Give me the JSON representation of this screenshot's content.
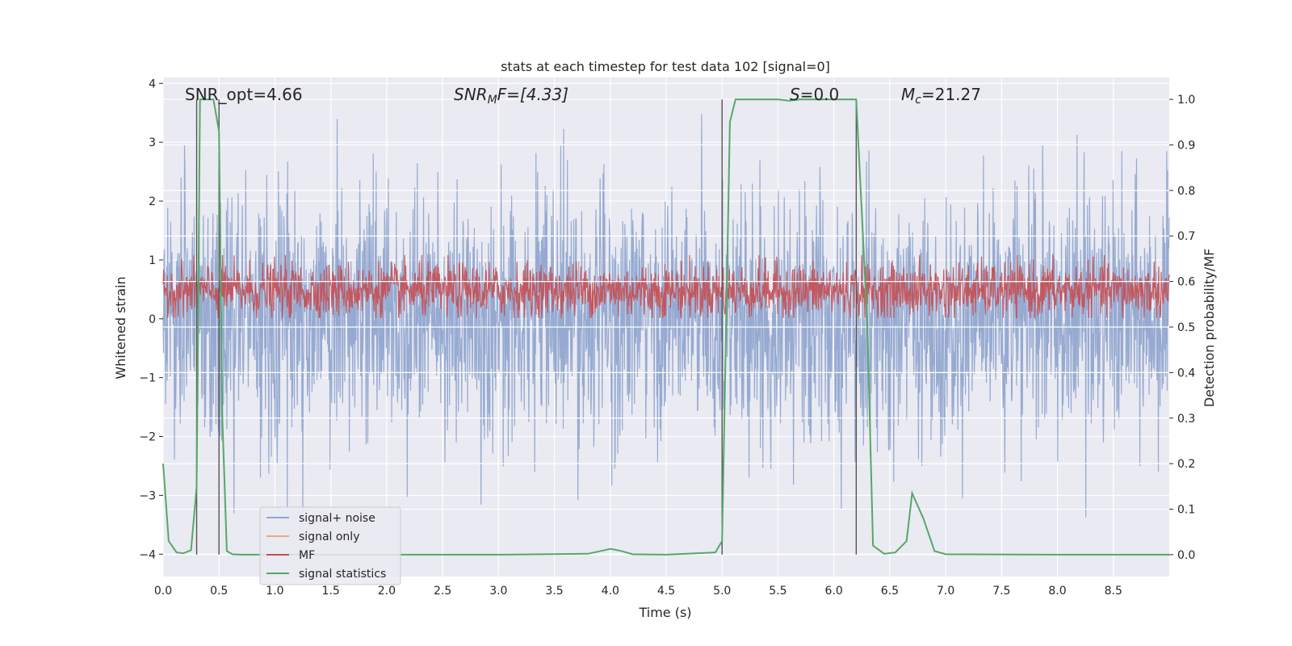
{
  "chart_data": {
    "type": "line",
    "title": "stats at each timestep for test data 102 [signal=0]",
    "xlabel": "Time (s)",
    "ylabel_left": "Whitened strain",
    "ylabel_right": "Detection probability/MF",
    "xlim": [
      0.0,
      9.0
    ],
    "ylim_left": [
      -4.38,
      4.1
    ],
    "ylim_right": [
      -0.048,
      1.048
    ],
    "x_ticks": [
      "0.0",
      "0.5",
      "1.0",
      "1.5",
      "2.0",
      "2.5",
      "3.0",
      "3.5",
      "4.0",
      "4.5",
      "5.0",
      "5.5",
      "6.0",
      "6.5",
      "7.0",
      "7.5",
      "8.0",
      "8.5"
    ],
    "y_ticks_left": [
      "4",
      "3",
      "2",
      "1",
      "0",
      "−1",
      "−2",
      "−3",
      "−4"
    ],
    "y_ticks_right": [
      "1.0",
      "0.9",
      "0.8",
      "0.7",
      "0.6",
      "0.5",
      "0.4",
      "0.3",
      "0.2",
      "0.1",
      "0.0"
    ],
    "grid": true,
    "legend_position": "lower-left",
    "annotations": {
      "snr_opt": "SNR_opt=4.66",
      "snr_mf_base": "SNR",
      "snr_mf_sub": "M",
      "snr_mf_rest": "F=[4.33]",
      "s_label": "S",
      "s_value": "=0.0",
      "mc_base": "M",
      "mc_sub": "c",
      "mc_value": "=21.27"
    },
    "vertical_lines_x": [
      0.3,
      0.5,
      5.0,
      6.2
    ],
    "series": [
      {
        "name": "signal+ noise",
        "color": "#91a7cf",
        "axis": "left",
        "kind": "noise",
        "envelope_upper": 3.0,
        "envelope_lower": -3.0
      },
      {
        "name": "signal only",
        "color": "#eda887",
        "axis": "left",
        "kind": "none"
      },
      {
        "name": "MF",
        "color": "#c44e52",
        "axis": "right",
        "kind": "band",
        "band_center": 0.58,
        "band_halfwidth": 0.06
      },
      {
        "name": "signal statistics",
        "color": "#55a868",
        "axis": "right",
        "kind": "line",
        "x": [
          0.0,
          0.05,
          0.12,
          0.18,
          0.25,
          0.3,
          0.33,
          0.37,
          0.45,
          0.5,
          0.53,
          0.57,
          0.62,
          0.7,
          1.0,
          2.0,
          3.0,
          3.8,
          3.95,
          4.0,
          4.1,
          4.2,
          4.5,
          4.94,
          5.0,
          5.07,
          5.12,
          5.5,
          5.6,
          5.7,
          6.0,
          6.2,
          6.3,
          6.35,
          6.45,
          6.55,
          6.65,
          6.7,
          6.8,
          6.9,
          7.0,
          8.0,
          9.0
        ],
        "y": [
          0.2,
          0.03,
          0.005,
          0.003,
          0.01,
          0.15,
          1.0,
          1.0,
          1.0,
          0.93,
          0.3,
          0.008,
          0.001,
          0.0,
          0.0,
          0.0,
          0.0,
          0.002,
          0.01,
          0.013,
          0.008,
          0.001,
          0.0,
          0.005,
          0.03,
          0.95,
          1.0,
          1.0,
          0.997,
          1.0,
          1.0,
          1.0,
          0.5,
          0.02,
          0.002,
          0.005,
          0.03,
          0.135,
          0.08,
          0.008,
          0.001,
          0.0,
          0.0
        ]
      }
    ]
  }
}
